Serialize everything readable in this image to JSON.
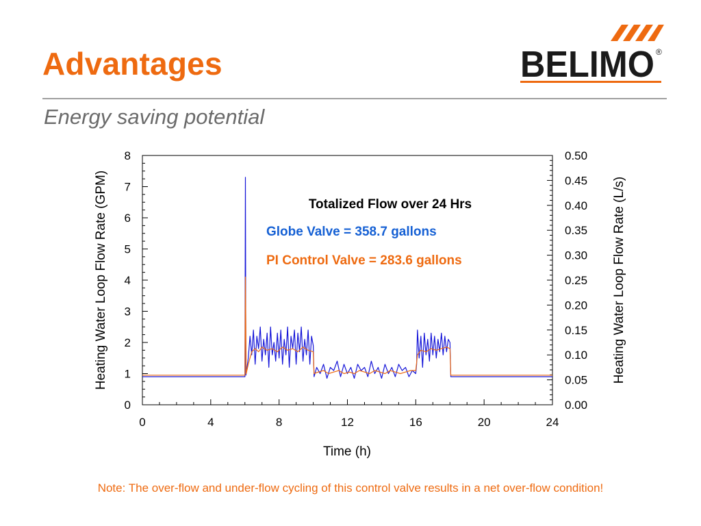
{
  "slide": {
    "title": "Advantages",
    "subtitle": "Energy saving potential",
    "note": "Note: The over-flow and under-flow cycling of this control valve results in a net over-flow condition!"
  },
  "logo": {
    "text": "BELIMO",
    "registered_mark": "®",
    "color_orange": "#ee6a10",
    "color_text": "#1a1a1a"
  },
  "colors": {
    "accent": "#ee6a10",
    "globe": "#1414d8",
    "pi": "#ee6a10",
    "annotation_blue": "#1560d4"
  },
  "chart_data": {
    "type": "line",
    "xlabel": "Time (h)",
    "ylabel": "Heating Water Loop Flow Rate (GPM)",
    "y2label": "Heating Water Loop Flow Rate (L/s)",
    "xlim": [
      0,
      24
    ],
    "ylim": [
      0,
      8
    ],
    "y2lim": [
      0,
      0.5
    ],
    "xticks": [
      0,
      4,
      8,
      12,
      16,
      20,
      24
    ],
    "yticks": [
      0,
      1,
      2,
      3,
      4,
      5,
      6,
      7,
      8
    ],
    "y2ticks": [
      "0.00",
      "0.05",
      "0.10",
      "0.15",
      "0.20",
      "0.25",
      "0.30",
      "0.35",
      "0.40",
      "0.45",
      "0.50"
    ],
    "grid": false,
    "annotations": {
      "heading": "Totalized Flow over 24 Hrs",
      "globe": "Globe Valve = 358.7 gallons",
      "pi": "PI Control Valve = 283.6 gallons"
    },
    "series": [
      {
        "id": "globe",
        "color": "#1414d8",
        "x": [
          0,
          6,
          6.03,
          6.06,
          6.1,
          6.2,
          6.3,
          6.4,
          6.5,
          6.6,
          6.7,
          6.8,
          6.9,
          7.0,
          7.1,
          7.2,
          7.3,
          7.4,
          7.5,
          7.6,
          7.7,
          7.8,
          7.9,
          8.0,
          8.1,
          8.2,
          8.3,
          8.4,
          8.5,
          8.6,
          8.7,
          8.8,
          8.9,
          9.0,
          9.1,
          9.2,
          9.3,
          9.4,
          9.5,
          9.6,
          9.7,
          9.8,
          9.9,
          10.0,
          10.05,
          10.2,
          10.4,
          10.6,
          10.8,
          11.0,
          11.2,
          11.4,
          11.6,
          11.8,
          12.0,
          12.2,
          12.4,
          12.6,
          12.8,
          13.0,
          13.2,
          13.4,
          13.6,
          13.8,
          14.0,
          14.2,
          14.4,
          14.6,
          14.8,
          15.0,
          15.2,
          15.4,
          15.6,
          15.8,
          16.0,
          16.05,
          16.1,
          16.2,
          16.3,
          16.4,
          16.5,
          16.6,
          16.7,
          16.8,
          16.9,
          17.0,
          17.1,
          17.2,
          17.3,
          17.4,
          17.5,
          17.6,
          17.7,
          17.8,
          17.9,
          18.0,
          18.05,
          24
        ],
        "y": [
          0.9,
          0.9,
          7.3,
          0.95,
          1.1,
          1.5,
          2.2,
          1.6,
          2.4,
          1.3,
          2.2,
          1.8,
          2.5,
          1.4,
          2.1,
          1.6,
          2.3,
          1.2,
          2.5,
          1.6,
          2.0,
          1.4,
          2.3,
          1.5,
          2.4,
          1.3,
          2.1,
          1.6,
          2.5,
          1.2,
          2.2,
          1.8,
          2.4,
          1.3,
          2.3,
          1.7,
          2.5,
          1.4,
          2.1,
          1.6,
          2.4,
          1.3,
          2.2,
          1.9,
          0.9,
          1.2,
          1.0,
          1.3,
          0.85,
          1.2,
          1.1,
          1.4,
          0.9,
          1.3,
          1.0,
          1.2,
          0.85,
          1.3,
          1.1,
          1.2,
          0.9,
          1.4,
          1.0,
          1.2,
          0.85,
          1.3,
          1.0,
          1.2,
          0.9,
          1.3,
          1.1,
          1.2,
          0.9,
          1.1,
          1.0,
          1.3,
          2.4,
          1.5,
          2.2,
          1.2,
          2.3,
          1.6,
          2.1,
          1.4,
          2.3,
          1.6,
          2.2,
          1.5,
          2.1,
          1.7,
          2.3,
          1.6,
          2.2,
          1.7,
          2.1,
          2.0,
          0.9,
          0.9
        ]
      },
      {
        "id": "pi",
        "color": "#ee6a10",
        "x": [
          0,
          6,
          6.03,
          6.08,
          6.2,
          6.4,
          6.6,
          6.8,
          7.0,
          7.3,
          7.6,
          7.9,
          8.2,
          8.5,
          8.8,
          9.1,
          9.4,
          9.7,
          10.0,
          10.05,
          10.3,
          10.6,
          10.9,
          11.2,
          11.5,
          11.8,
          12.1,
          12.4,
          12.7,
          13.0,
          13.3,
          13.6,
          13.9,
          14.2,
          14.5,
          14.8,
          15.1,
          15.4,
          15.7,
          16.0,
          16.1,
          16.3,
          16.6,
          16.9,
          17.2,
          17.5,
          17.8,
          18.0,
          18.05,
          24
        ],
        "y": [
          0.95,
          0.95,
          4.1,
          1.0,
          1.3,
          1.7,
          1.8,
          1.7,
          1.85,
          1.75,
          1.8,
          1.7,
          1.85,
          1.75,
          1.8,
          1.7,
          1.85,
          1.75,
          1.7,
          1.0,
          1.05,
          1.1,
          1.0,
          1.05,
          1.1,
          1.0,
          1.05,
          1.0,
          1.1,
          1.05,
          1.0,
          1.1,
          1.05,
          1.0,
          1.1,
          1.05,
          1.0,
          1.05,
          1.1,
          1.1,
          1.6,
          1.75,
          1.7,
          1.8,
          1.75,
          1.8,
          1.85,
          1.8,
          0.95,
          0.95
        ]
      }
    ]
  }
}
